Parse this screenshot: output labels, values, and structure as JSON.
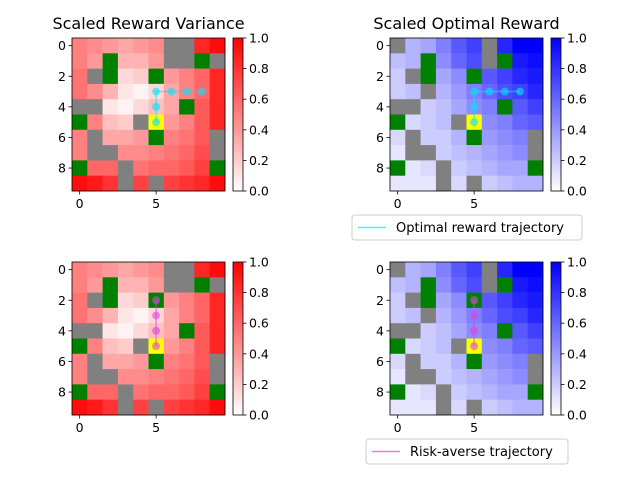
{
  "colors": {
    "obstacle": "#808080",
    "goal": "#008000",
    "start": "#ffff00",
    "red_max": "#ff0000",
    "blue_max": "#0000ff",
    "optimal_trajectory": "#00e5ff",
    "risk_averse_trajectory": "#dd44dd"
  },
  "chart_data": [
    {
      "id": "variance-optimal",
      "type": "heatmap",
      "title": "Scaled Reward Variance",
      "colormap": "red",
      "xticks": [
        0,
        5
      ],
      "yticks": [
        0,
        2,
        4,
        6,
        8
      ],
      "colorbar_ticks": [
        "0.0",
        "0.2",
        "0.4",
        "0.6",
        "0.8",
        "1.0"
      ],
      "clim": [
        0,
        1
      ],
      "grid": [
        [
          0.5,
          0.45,
          0.4,
          0.35,
          0.4,
          0.45,
          "o",
          "o",
          0.85,
          0.95
        ],
        [
          0.5,
          0.4,
          "g",
          0.3,
          0.3,
          0.4,
          "o",
          "o",
          "g",
          "o"
        ],
        [
          0.55,
          "o",
          "g",
          0.15,
          0.2,
          "g",
          0.4,
          0.5,
          0.6,
          0.85
        ],
        [
          0.55,
          0.45,
          0.3,
          0.1,
          0.05,
          0.15,
          0.35,
          0.5,
          0.6,
          0.85
        ],
        [
          "o",
          "o",
          0.1,
          0.05,
          0.15,
          0.25,
          0.35,
          "g",
          0.65,
          0.85
        ],
        [
          "g",
          0.5,
          0.25,
          0.2,
          "o",
          "s",
          0.4,
          0.5,
          0.65,
          0.85
        ],
        [
          0.5,
          "o",
          0.35,
          0.35,
          0.4,
          "g",
          0.5,
          0.55,
          0.65,
          "o"
        ],
        [
          0.5,
          "o",
          "o",
          0.45,
          0.45,
          0.5,
          0.55,
          0.6,
          0.7,
          "o"
        ],
        [
          "g",
          0.6,
          0.6,
          "o",
          0.55,
          0.6,
          0.6,
          0.65,
          0.75,
          "g"
        ],
        [
          0.95,
          0.9,
          0.8,
          "o",
          0.75,
          "o",
          0.75,
          0.8,
          0.85,
          0.95
        ]
      ],
      "trajectory": [
        [
          5,
          5
        ],
        [
          5,
          4
        ],
        [
          5,
          3
        ],
        [
          6,
          3
        ],
        [
          7,
          3
        ],
        [
          8,
          3
        ]
      ],
      "trajectory_color": "optimal_trajectory"
    },
    {
      "id": "reward-optimal",
      "type": "heatmap",
      "title": "Scaled Optimal Reward",
      "colormap": "blue",
      "xticks": [
        0,
        5
      ],
      "yticks": [
        0,
        2,
        4,
        6,
        8
      ],
      "colorbar_ticks": [
        "0.0",
        "0.2",
        "0.4",
        "0.6",
        "0.8",
        "1.0"
      ],
      "clim": [
        0,
        1
      ],
      "grid": [
        [
          "o",
          0.3,
          0.35,
          0.5,
          0.65,
          0.75,
          "o",
          0.85,
          1.0,
          1.0
        ],
        [
          0.25,
          0.3,
          "g",
          0.45,
          0.6,
          0.7,
          "o",
          "g",
          0.9,
          0.95
        ],
        [
          0.2,
          "o",
          "g",
          0.35,
          0.45,
          "g",
          0.65,
          0.75,
          0.85,
          0.9
        ],
        [
          0.2,
          0.25,
          "o",
          0.3,
          0.4,
          0.5,
          0.6,
          0.7,
          0.75,
          0.85
        ],
        [
          "o",
          "o",
          0.2,
          0.25,
          0.35,
          0.45,
          0.5,
          "g",
          0.65,
          0.75
        ],
        [
          "g",
          0.15,
          0.2,
          0.25,
          "o",
          "s",
          0.45,
          0.5,
          0.6,
          0.65
        ],
        [
          0.15,
          "o",
          0.2,
          0.2,
          0.3,
          "g",
          0.4,
          0.45,
          0.5,
          "o"
        ],
        [
          0.1,
          "o",
          "o",
          0.2,
          0.25,
          0.3,
          0.35,
          0.4,
          0.45,
          "o"
        ],
        [
          "g",
          0.1,
          0.15,
          "o",
          0.2,
          0.25,
          0.3,
          0.35,
          0.35,
          "g"
        ],
        [
          0.1,
          0.1,
          0.1,
          "o",
          0.15,
          "o",
          0.2,
          0.25,
          0.3,
          0.3
        ]
      ],
      "trajectory": [
        [
          5,
          5
        ],
        [
          5,
          4
        ],
        [
          5,
          3
        ],
        [
          6,
          3
        ],
        [
          7,
          3
        ],
        [
          8,
          3
        ]
      ],
      "trajectory_color": "optimal_trajectory",
      "legend": "Optimal reward trajectory"
    },
    {
      "id": "variance-risk",
      "type": "heatmap",
      "title": "",
      "colormap": "red",
      "xticks": [
        0,
        5
      ],
      "yticks": [
        0,
        2,
        4,
        6,
        8
      ],
      "colorbar_ticks": [
        "0.0",
        "0.2",
        "0.4",
        "0.6",
        "0.8",
        "1.0"
      ],
      "clim": [
        0,
        1
      ],
      "grid": [
        [
          0.5,
          0.45,
          0.4,
          0.35,
          0.4,
          0.45,
          "o",
          "o",
          0.85,
          0.95
        ],
        [
          0.5,
          0.4,
          "g",
          0.3,
          0.3,
          0.4,
          "o",
          "o",
          "g",
          "o"
        ],
        [
          0.55,
          "o",
          "g",
          0.15,
          0.2,
          "g",
          0.4,
          0.5,
          0.6,
          0.85
        ],
        [
          0.55,
          0.45,
          0.3,
          0.1,
          0.05,
          0.15,
          0.35,
          0.5,
          0.6,
          0.85
        ],
        [
          "o",
          "o",
          0.1,
          0.05,
          0.15,
          0.25,
          0.35,
          "g",
          0.65,
          0.85
        ],
        [
          "g",
          0.5,
          0.25,
          0.2,
          "o",
          "s",
          0.4,
          0.5,
          0.65,
          0.85
        ],
        [
          0.5,
          "o",
          0.35,
          0.35,
          0.4,
          "g",
          0.5,
          0.55,
          0.65,
          "o"
        ],
        [
          0.5,
          "o",
          "o",
          0.45,
          0.45,
          0.5,
          0.55,
          0.6,
          0.7,
          "o"
        ],
        [
          "g",
          0.6,
          0.6,
          "o",
          0.55,
          0.6,
          0.6,
          0.65,
          0.75,
          "g"
        ],
        [
          0.95,
          0.9,
          0.8,
          "o",
          0.75,
          "o",
          0.75,
          0.8,
          0.85,
          0.95
        ]
      ],
      "trajectory": [
        [
          5,
          5
        ],
        [
          5,
          4
        ],
        [
          5,
          3
        ],
        [
          5,
          2
        ]
      ],
      "trajectory_color": "risk_averse_trajectory"
    },
    {
      "id": "reward-risk",
      "type": "heatmap",
      "title": "",
      "colormap": "blue",
      "xticks": [
        0,
        5
      ],
      "yticks": [
        0,
        2,
        4,
        6,
        8
      ],
      "colorbar_ticks": [
        "0.0",
        "0.2",
        "0.4",
        "0.6",
        "0.8",
        "1.0"
      ],
      "clim": [
        0,
        1
      ],
      "grid": [
        [
          "o",
          0.3,
          0.35,
          0.5,
          0.65,
          0.75,
          "o",
          0.85,
          1.0,
          1.0
        ],
        [
          0.25,
          0.3,
          "g",
          0.45,
          0.6,
          0.7,
          "o",
          "g",
          0.9,
          0.95
        ],
        [
          0.2,
          "o",
          "g",
          0.35,
          0.45,
          "g",
          0.65,
          0.75,
          0.85,
          0.9
        ],
        [
          0.2,
          0.25,
          "o",
          0.3,
          0.4,
          0.5,
          0.6,
          0.7,
          0.75,
          0.85
        ],
        [
          "o",
          "o",
          0.2,
          0.25,
          0.35,
          0.45,
          0.5,
          "g",
          0.65,
          0.75
        ],
        [
          "g",
          0.15,
          0.2,
          0.25,
          "o",
          "s",
          0.45,
          0.5,
          0.6,
          0.65
        ],
        [
          0.15,
          "o",
          0.2,
          0.2,
          0.3,
          "g",
          0.4,
          0.45,
          0.5,
          "o"
        ],
        [
          0.1,
          "o",
          "o",
          0.2,
          0.25,
          0.3,
          0.35,
          0.4,
          0.45,
          "o"
        ],
        [
          "g",
          0.1,
          0.15,
          "o",
          0.2,
          0.25,
          0.3,
          0.35,
          0.35,
          "g"
        ],
        [
          0.1,
          0.1,
          0.1,
          "o",
          0.15,
          "o",
          0.2,
          0.25,
          0.3,
          0.3
        ]
      ],
      "trajectory": [
        [
          5,
          5
        ],
        [
          5,
          4
        ],
        [
          5,
          3
        ],
        [
          5,
          2
        ]
      ],
      "trajectory_color": "risk_averse_trajectory",
      "legend": "Risk-averse trajectory"
    }
  ]
}
